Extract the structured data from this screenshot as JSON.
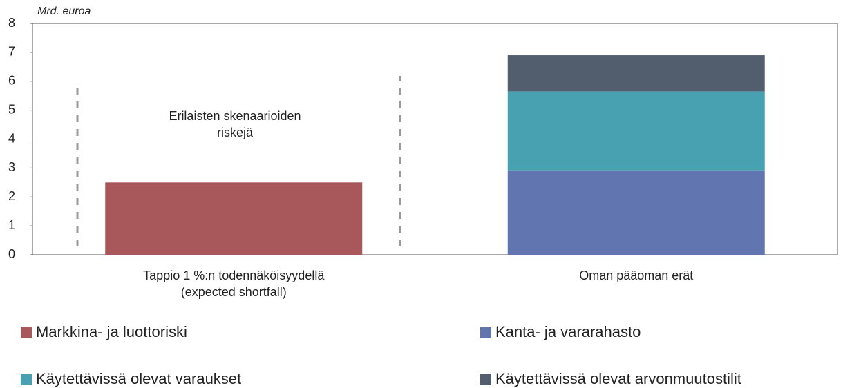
{
  "chart_data": {
    "type": "stacked_bar",
    "y_label": "Mrd. euroa",
    "annotation": "Erilaisten skenaarioiden\nriskejä",
    "categories": [
      "Tappio 1 %:n todennäköisyydellä\n(expected shortfall)",
      "Oman pääoman erät"
    ],
    "series": [
      {
        "name": "Markkina- ja luottoriski",
        "color": "#a8575b",
        "values": [
          2.5,
          null
        ]
      },
      {
        "name": "Kanta- ja vararahasto",
        "color": "#6175b0",
        "values": [
          null,
          2.92
        ]
      },
      {
        "name": "Käytettävissä olevat varaukset",
        "color": "#48a1b1",
        "values": [
          null,
          2.73
        ]
      },
      {
        "name": "Käytettävissä olevat arvonmuutostilit",
        "color": "#525e6e",
        "values": [
          null,
          1.25
        ]
      }
    ],
    "ylim": [
      0,
      8
    ],
    "yticks": [
      0,
      1,
      2,
      3,
      4,
      5,
      6,
      7,
      8
    ],
    "grid": false
  }
}
